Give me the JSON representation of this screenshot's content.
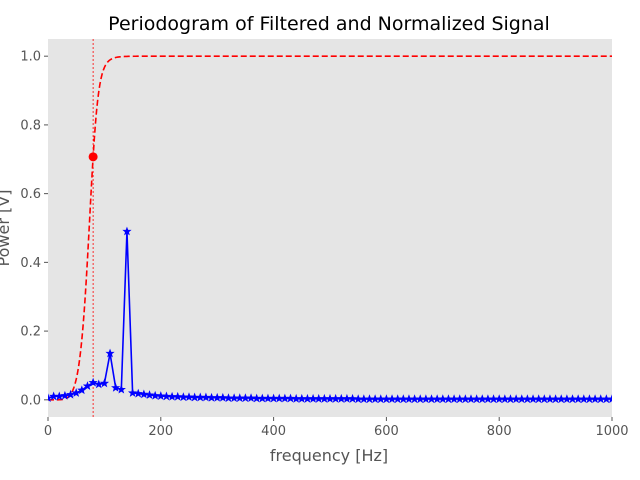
{
  "chart_data": {
    "type": "line",
    "title": "Periodogram of Filtered and Normalized Signal",
    "xlabel": "frequency [Hz]",
    "ylabel": "Power [V]",
    "xlim": [
      0,
      1000
    ],
    "ylim": [
      -0.05,
      1.05
    ],
    "x_ticks": [
      0,
      200,
      400,
      600,
      800,
      1000
    ],
    "y_ticks": [
      0.0,
      0.2,
      0.4,
      0.6,
      0.8,
      1.0
    ],
    "grid": false,
    "background_color": "#e5e5e5",
    "series": [
      {
        "style": "blue solid line with star markers",
        "color": "#0000ff",
        "x": [
          0,
          10,
          20,
          30,
          40,
          50,
          60,
          70,
          80,
          90,
          100,
          110,
          120,
          130,
          140,
          150,
          160,
          170,
          180,
          190,
          200,
          210,
          220,
          230,
          240,
          250,
          260,
          270,
          280,
          290,
          300,
          310,
          320,
          330,
          340,
          350,
          360,
          370,
          380,
          390,
          400,
          410,
          420,
          430,
          440,
          450,
          460,
          470,
          480,
          490,
          500,
          510,
          520,
          530,
          540,
          550,
          560,
          570,
          580,
          590,
          600,
          610,
          620,
          630,
          640,
          650,
          660,
          670,
          680,
          690,
          700,
          710,
          720,
          730,
          740,
          750,
          760,
          770,
          780,
          790,
          800,
          810,
          820,
          830,
          840,
          850,
          860,
          870,
          880,
          890,
          900,
          910,
          920,
          930,
          940,
          950,
          960,
          970,
          980,
          990,
          1000
        ],
        "values": [
          0.005,
          0.01,
          0.01,
          0.012,
          0.015,
          0.02,
          0.028,
          0.04,
          0.05,
          0.045,
          0.048,
          0.135,
          0.035,
          0.03,
          0.49,
          0.02,
          0.018,
          0.016,
          0.014,
          0.012,
          0.011,
          0.01,
          0.009,
          0.009,
          0.008,
          0.008,
          0.007,
          0.007,
          0.007,
          0.006,
          0.006,
          0.006,
          0.005,
          0.005,
          0.005,
          0.005,
          0.005,
          0.004,
          0.004,
          0.004,
          0.004,
          0.004,
          0.004,
          0.004,
          0.003,
          0.003,
          0.003,
          0.003,
          0.003,
          0.003,
          0.003,
          0.003,
          0.003,
          0.003,
          0.003,
          0.002,
          0.002,
          0.002,
          0.002,
          0.002,
          0.002,
          0.002,
          0.002,
          0.002,
          0.002,
          0.002,
          0.002,
          0.002,
          0.002,
          0.002,
          0.002,
          0.002,
          0.002,
          0.002,
          0.002,
          0.002,
          0.002,
          0.002,
          0.002,
          0.002,
          0.002,
          0.002,
          0.002,
          0.002,
          0.002,
          0.002,
          0.002,
          0.002,
          0.002,
          0.002,
          0.002,
          0.002,
          0.002,
          0.002,
          0.002,
          0.002,
          0.002,
          0.002,
          0.002,
          0.002,
          0.002
        ]
      },
      {
        "style": "red dashed curve",
        "color": "#ff0000",
        "cutoff_hz": 80,
        "order": 6
      }
    ],
    "annotations": [
      {
        "type": "vline",
        "x": 80,
        "color": "#ff0000",
        "style": "thin dashed"
      },
      {
        "type": "point",
        "x": 80,
        "y": 0.707,
        "color": "#ff0000",
        "marker": "circle"
      }
    ]
  }
}
